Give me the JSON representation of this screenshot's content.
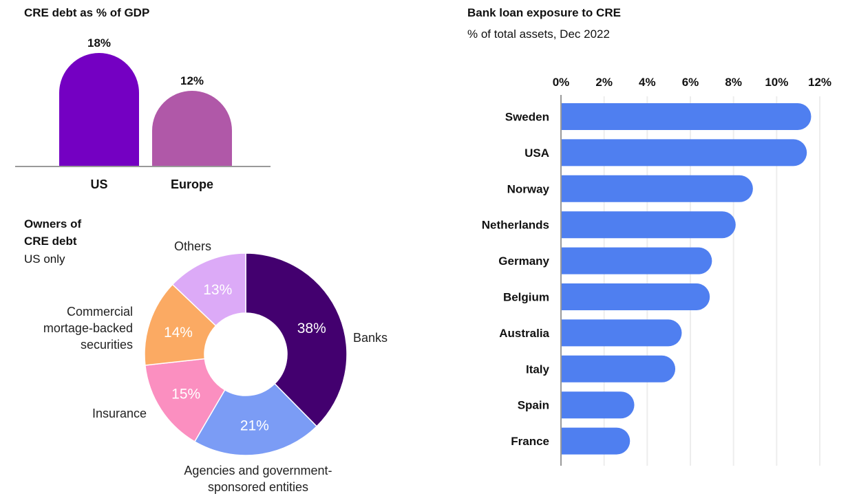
{
  "chart_data": [
    {
      "type": "bar",
      "title": "CRE debt as % of GDP",
      "categories": [
        "US",
        "Europe"
      ],
      "values": [
        18,
        12
      ],
      "value_labels": [
        "18%",
        "12%"
      ],
      "colors": [
        "#7400c2",
        "#b058a8"
      ],
      "ylim": [
        0,
        20
      ]
    },
    {
      "type": "pie",
      "title": "Owners of CRE debt",
      "subtitle": "US only",
      "slices": [
        {
          "name": "Banks",
          "value": 38,
          "label": "38%",
          "color": "#43006f",
          "text_color": "#ffffff"
        },
        {
          "name": "Agencies and government-sponsored entities",
          "value": 21,
          "label": "21%",
          "color": "#7b9cf5",
          "text_color": "#ffffff"
        },
        {
          "name": "Insurance",
          "value": 15,
          "label": "15%",
          "color": "#fb8fc0",
          "text_color": "#ffffff"
        },
        {
          "name": "Commercial mortage-backed securities",
          "value": 14,
          "label": "14%",
          "color": "#fbaa63",
          "text_color": "#ffffff"
        },
        {
          "name": "Others",
          "value": 13,
          "label": "13%",
          "color": "#dcaaf7",
          "text_color": "#ffffff"
        }
      ],
      "slice_label_lines": [
        [
          "Banks"
        ],
        [
          "Agencies and government-",
          "sponsored entities"
        ],
        [
          "Insurance"
        ],
        [
          "Commercial",
          "mortage-backed",
          "securities"
        ],
        [
          "Others"
        ]
      ]
    },
    {
      "type": "bar",
      "orientation": "horizontal",
      "title": "Bank loan exposure to CRE",
      "subtitle": "% of total assets, Dec 2022",
      "categories": [
        "Sweden",
        "USA",
        "Norway",
        "Netherlands",
        "Germany",
        "Belgium",
        "Australia",
        "Italy",
        "Spain",
        "France"
      ],
      "values": [
        11.6,
        11.4,
        8.9,
        8.1,
        7.0,
        6.9,
        5.6,
        5.3,
        3.4,
        3.2
      ],
      "xlim": [
        0,
        12
      ],
      "xticks": [
        "0%",
        "2%",
        "4%",
        "6%",
        "8%",
        "10%",
        "12%"
      ],
      "bar_color": "#4f7ff0",
      "grid": true
    }
  ]
}
